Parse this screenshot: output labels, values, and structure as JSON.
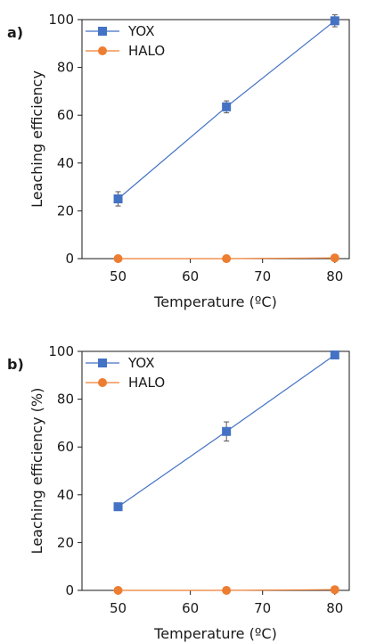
{
  "colors": {
    "yox": "#4472c4",
    "halo": "#ed7d31",
    "axis": "#1a1a1a",
    "errorbar": "#555555"
  },
  "chart_data": [
    {
      "panel_label": "a)",
      "type": "line",
      "xlabel": "Temperature (ºC)",
      "ylabel": "Leaching efficiency",
      "xlim": [
        45,
        82
      ],
      "ylim": [
        0,
        100
      ],
      "xticks": [
        50,
        60,
        70,
        80
      ],
      "yticks": [
        0,
        20,
        40,
        60,
        80,
        100
      ],
      "legend_position": "top-left",
      "grid": false,
      "series": [
        {
          "name": "YOX",
          "marker": "square",
          "color": "#4472c4",
          "x": [
            50,
            65,
            80
          ],
          "y": [
            25,
            63.5,
            99.5
          ],
          "err": [
            3,
            2.5,
            2.5
          ]
        },
        {
          "name": "HALO",
          "marker": "circle",
          "color": "#ed7d31",
          "x": [
            50,
            65,
            80
          ],
          "y": [
            0,
            0,
            0.3
          ],
          "err": [
            0,
            0,
            0
          ]
        }
      ]
    },
    {
      "panel_label": "b)",
      "type": "line",
      "xlabel": "Temperature (ºC)",
      "ylabel": "Leaching efficiency (%)",
      "xlim": [
        45,
        82
      ],
      "ylim": [
        0,
        100
      ],
      "xticks": [
        50,
        60,
        70,
        80
      ],
      "yticks": [
        0,
        20,
        40,
        60,
        80,
        100
      ],
      "legend_position": "top-left",
      "grid": false,
      "series": [
        {
          "name": "YOX",
          "marker": "square",
          "color": "#4472c4",
          "x": [
            50,
            65,
            80
          ],
          "y": [
            35,
            66.5,
            98.5
          ],
          "err": [
            1,
            4,
            1.5
          ]
        },
        {
          "name": "HALO",
          "marker": "circle",
          "color": "#ed7d31",
          "x": [
            50,
            65,
            80
          ],
          "y": [
            0,
            0,
            0.3
          ],
          "err": [
            0,
            0,
            0
          ]
        }
      ]
    }
  ]
}
